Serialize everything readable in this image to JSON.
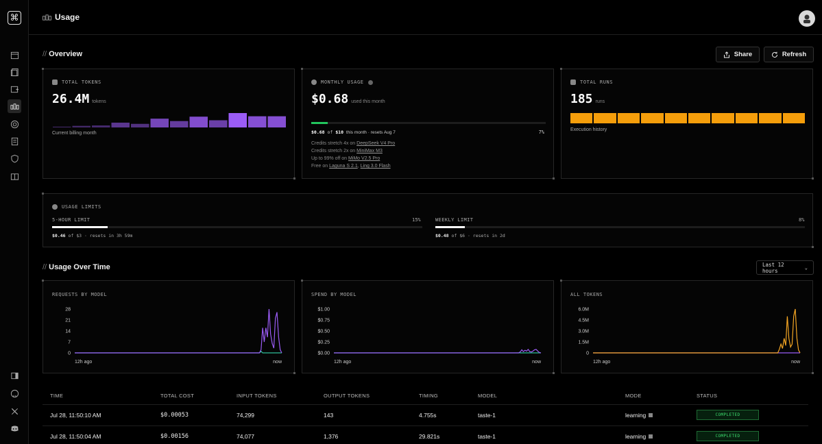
{
  "header": {
    "title": "Usage"
  },
  "overview": {
    "title": "Overview",
    "share_label": "Share",
    "refresh_label": "Refresh",
    "total_tokens": {
      "label": "TOTAL TOKENS",
      "value": "26.4M",
      "unit": "tokens",
      "caption": "Current billing month",
      "bars": [
        0.02,
        0.04,
        0.05,
        0.12,
        0.09,
        0.22,
        0.16,
        0.27,
        0.18,
        0.36,
        0.28,
        0.28
      ]
    },
    "monthly_usage": {
      "label": "MONTHLY USAGE",
      "value": "$0.68",
      "unit": "used this month",
      "progress": 0.07,
      "used": "$0.68",
      "of_word": "of",
      "limit": "$10",
      "period_text": "this month · resets Aug 7",
      "percent": "7%",
      "promos": [
        {
          "text": "Credits stretch 4x on ",
          "links": [
            "DeepSeek V4 Pro"
          ]
        },
        {
          "text": "Credits stretch 2x on ",
          "links": [
            "MiniMax M3"
          ]
        },
        {
          "text": "Up to 99% off on ",
          "links": [
            "MiMo V2.5 Pro"
          ]
        },
        {
          "text": "Free on ",
          "links": [
            "Laguna S 2.1",
            "Ling 3.0 Flash"
          ]
        }
      ]
    },
    "total_runs": {
      "label": "TOTAL RUNS",
      "value": "185",
      "unit": "runs",
      "caption": "Execution history",
      "blocks": 10
    }
  },
  "usage_limits": {
    "label": "USAGE LIMITS",
    "five_hour": {
      "label": "5-HOUR LIMIT",
      "percent": "15%",
      "fraction": 0.15,
      "used": "$0.46",
      "of_text": "of $3 · resets in 3h 59m"
    },
    "weekly": {
      "label": "WEEKLY LIMIT",
      "percent": "8%",
      "fraction": 0.08,
      "used": "$0.48",
      "of_text": "of $6 · resets in 2d"
    }
  },
  "usage_over_time": {
    "title": "Usage Over Time",
    "range_label": "Last 12 hours"
  },
  "chart_data": [
    {
      "type": "line",
      "title": "REQUESTS BY MODEL",
      "y_ticks": [
        "28",
        "21",
        "14",
        "7",
        "0"
      ],
      "ylim": [
        0,
        28
      ],
      "x_labels": [
        "12h ago",
        "now"
      ],
      "series": [
        {
          "color": "#9b5cf6",
          "values": [
            0,
            0,
            0,
            0,
            0,
            0,
            0,
            0,
            0,
            0,
            0,
            0,
            0,
            0,
            0,
            0,
            0,
            0,
            0,
            0,
            0,
            0,
            0,
            0,
            0,
            0,
            0,
            0,
            0,
            0,
            0,
            0,
            0,
            0,
            0,
            0,
            0,
            0,
            0,
            0,
            0,
            0,
            0,
            0,
            0,
            0,
            0,
            0,
            0,
            0,
            0,
            0,
            0,
            0,
            0,
            0,
            0,
            0,
            0,
            0,
            0,
            0,
            0,
            0,
            0,
            0,
            0,
            0,
            0,
            0,
            0,
            0,
            0,
            0,
            0,
            0,
            0,
            0,
            0,
            0,
            0,
            0,
            0,
            0,
            0,
            0,
            0,
            0,
            0,
            0,
            0,
            0,
            0,
            0,
            0,
            0,
            0,
            0,
            0,
            0,
            0,
            0,
            0,
            0,
            0,
            0,
            0,
            0,
            0,
            0,
            0,
            0,
            0,
            0,
            0,
            0,
            0,
            2,
            16,
            7,
            16,
            10,
            28,
            12,
            6,
            3,
            22,
            26,
            10,
            2,
            0
          ]
        },
        {
          "color": "#2fbf9a",
          "values": [
            0,
            0,
            0,
            0,
            0,
            0,
            0,
            0,
            0,
            0,
            0,
            0,
            0,
            0,
            0,
            0,
            0,
            0,
            0,
            0,
            0,
            0,
            0,
            0,
            0,
            0,
            0,
            0,
            0,
            0,
            0,
            0,
            0,
            0,
            0,
            0,
            0,
            0,
            0,
            0,
            0,
            0,
            0,
            0,
            0,
            0,
            0,
            0,
            0,
            0,
            0,
            0,
            0,
            0,
            0,
            0,
            0,
            0,
            0,
            0,
            0,
            0,
            0,
            0,
            0,
            0,
            0,
            0,
            0,
            0,
            0,
            0,
            0,
            0,
            0,
            0,
            0,
            0,
            0,
            0,
            0,
            0,
            0,
            0,
            0,
            0,
            0,
            0,
            0,
            0,
            0,
            0,
            0,
            0,
            0,
            0,
            0,
            0,
            0,
            0,
            0,
            0,
            0,
            0,
            0,
            0,
            0,
            0,
            0,
            0,
            0,
            0,
            0,
            0,
            0,
            0,
            0,
            1,
            0,
            0,
            0,
            0,
            0,
            0,
            0,
            0,
            0,
            0,
            0,
            0,
            0
          ]
        }
      ]
    },
    {
      "type": "line",
      "title": "SPEND BY MODEL",
      "y_ticks": [
        "$1.00",
        "$0.75",
        "$0.50",
        "$0.25",
        "$0.00"
      ],
      "ylim": [
        0,
        1
      ],
      "x_labels": [
        "12h ago",
        "now"
      ],
      "series": [
        {
          "color": "#9b5cf6",
          "values": [
            0,
            0,
            0,
            0,
            0,
            0,
            0,
            0,
            0,
            0,
            0,
            0,
            0,
            0,
            0,
            0,
            0,
            0,
            0,
            0,
            0,
            0,
            0,
            0,
            0,
            0,
            0,
            0,
            0,
            0,
            0,
            0,
            0,
            0,
            0,
            0,
            0,
            0,
            0,
            0,
            0,
            0,
            0,
            0,
            0,
            0,
            0,
            0,
            0,
            0,
            0,
            0,
            0,
            0,
            0,
            0,
            0,
            0,
            0,
            0,
            0,
            0,
            0,
            0,
            0,
            0,
            0,
            0,
            0,
            0,
            0,
            0,
            0,
            0,
            0,
            0,
            0,
            0,
            0,
            0,
            0,
            0,
            0,
            0,
            0,
            0,
            0,
            0,
            0,
            0,
            0,
            0,
            0,
            0,
            0,
            0,
            0,
            0,
            0,
            0,
            0,
            0,
            0,
            0,
            0,
            0,
            0,
            0,
            0,
            0,
            0,
            0,
            0,
            0,
            0,
            0,
            0,
            0.02,
            0.07,
            0.03,
            0.06,
            0.04,
            0.08,
            0.03,
            0.02,
            0.04,
            0.07,
            0.08,
            0.04,
            0.01,
            0
          ]
        },
        {
          "color": "#2fbf9a",
          "values": [
            0,
            0,
            0,
            0,
            0,
            0,
            0,
            0,
            0,
            0,
            0,
            0,
            0,
            0,
            0,
            0,
            0,
            0,
            0,
            0,
            0,
            0,
            0,
            0,
            0,
            0,
            0,
            0,
            0,
            0,
            0,
            0,
            0,
            0,
            0,
            0,
            0,
            0,
            0,
            0,
            0,
            0,
            0,
            0,
            0,
            0,
            0,
            0,
            0,
            0,
            0,
            0,
            0,
            0,
            0,
            0,
            0,
            0,
            0,
            0,
            0,
            0,
            0,
            0,
            0,
            0,
            0,
            0,
            0,
            0,
            0,
            0,
            0,
            0,
            0,
            0,
            0,
            0,
            0,
            0,
            0,
            0,
            0,
            0,
            0,
            0,
            0,
            0,
            0,
            0,
            0,
            0,
            0,
            0,
            0,
            0,
            0,
            0,
            0,
            0,
            0,
            0,
            0,
            0,
            0,
            0,
            0,
            0,
            0,
            0,
            0,
            0,
            0,
            0,
            0,
            0,
            0,
            0,
            0,
            0,
            0,
            0,
            0,
            0,
            0,
            0,
            0,
            0,
            0,
            0,
            0
          ]
        }
      ]
    },
    {
      "type": "line",
      "title": "ALL TOKENS",
      "y_ticks": [
        "6.0M",
        "4.5M",
        "3.0M",
        "1.5M",
        "0"
      ],
      "ylim": [
        0,
        6
      ],
      "x_labels": [
        "12h ago",
        "now"
      ],
      "series": [
        {
          "color": "#f5a623",
          "values": [
            0,
            0,
            0,
            0,
            0,
            0,
            0,
            0,
            0,
            0,
            0,
            0,
            0,
            0,
            0,
            0,
            0,
            0,
            0,
            0,
            0,
            0,
            0,
            0,
            0,
            0,
            0,
            0,
            0,
            0,
            0,
            0,
            0,
            0,
            0,
            0,
            0,
            0,
            0,
            0,
            0,
            0,
            0,
            0,
            0,
            0,
            0,
            0,
            0,
            0,
            0,
            0,
            0,
            0,
            0,
            0,
            0,
            0,
            0,
            0,
            0,
            0,
            0,
            0,
            0,
            0,
            0,
            0,
            0,
            0,
            0,
            0,
            0,
            0,
            0,
            0,
            0,
            0,
            0,
            0,
            0,
            0,
            0,
            0,
            0,
            0,
            0,
            0,
            0,
            0,
            0,
            0,
            0,
            0,
            0,
            0,
            0,
            0,
            0,
            0,
            0,
            0,
            0,
            0,
            0,
            0,
            0,
            0,
            0,
            0,
            0,
            0,
            0,
            0,
            0,
            0,
            0,
            0.5,
            1.2,
            0.6,
            2.0,
            1.0,
            5.0,
            2.0,
            0.8,
            1.2,
            5.0,
            6.0,
            2.0,
            0.4,
            0
          ]
        },
        {
          "color": "#9b5cf6",
          "values": [
            0,
            0,
            0,
            0,
            0,
            0,
            0,
            0,
            0,
            0,
            0,
            0,
            0,
            0,
            0,
            0,
            0,
            0,
            0,
            0,
            0,
            0,
            0,
            0,
            0,
            0,
            0,
            0,
            0,
            0,
            0,
            0,
            0,
            0,
            0,
            0,
            0,
            0,
            0,
            0,
            0,
            0,
            0,
            0,
            0,
            0,
            0,
            0,
            0,
            0,
            0,
            0,
            0,
            0,
            0,
            0,
            0,
            0,
            0,
            0,
            0,
            0,
            0,
            0,
            0,
            0,
            0,
            0,
            0,
            0,
            0,
            0,
            0,
            0,
            0,
            0,
            0,
            0,
            0,
            0,
            0,
            0,
            0,
            0,
            0,
            0,
            0,
            0,
            0,
            0,
            0,
            0,
            0,
            0,
            0,
            0,
            0,
            0,
            0,
            0,
            0,
            0,
            0,
            0,
            0,
            0,
            0,
            0,
            0,
            0,
            0,
            0,
            0,
            0,
            0,
            0,
            0,
            0,
            0,
            0,
            0,
            0,
            0,
            0,
            0,
            0,
            0,
            0,
            0,
            0,
            0
          ]
        }
      ]
    }
  ],
  "table": {
    "columns": [
      "TIME",
      "TOTAL COST",
      "INPUT TOKENS",
      "OUTPUT TOKENS",
      "TIMING",
      "MODEL",
      "MODE",
      "STATUS"
    ],
    "rows": [
      {
        "time": "Jul 28, 11:50:10 AM",
        "cost": "$0.00053",
        "input": "74,299",
        "output": "143",
        "timing": "4.755s",
        "model": "taste-1",
        "mode": "learning",
        "status": "COMPLETED"
      },
      {
        "time": "Jul 28, 11:50:04 AM",
        "cost": "$0.00156",
        "input": "74,077",
        "output": "1,376",
        "timing": "29.821s",
        "model": "taste-1",
        "mode": "learning",
        "status": "COMPLETED"
      }
    ]
  }
}
